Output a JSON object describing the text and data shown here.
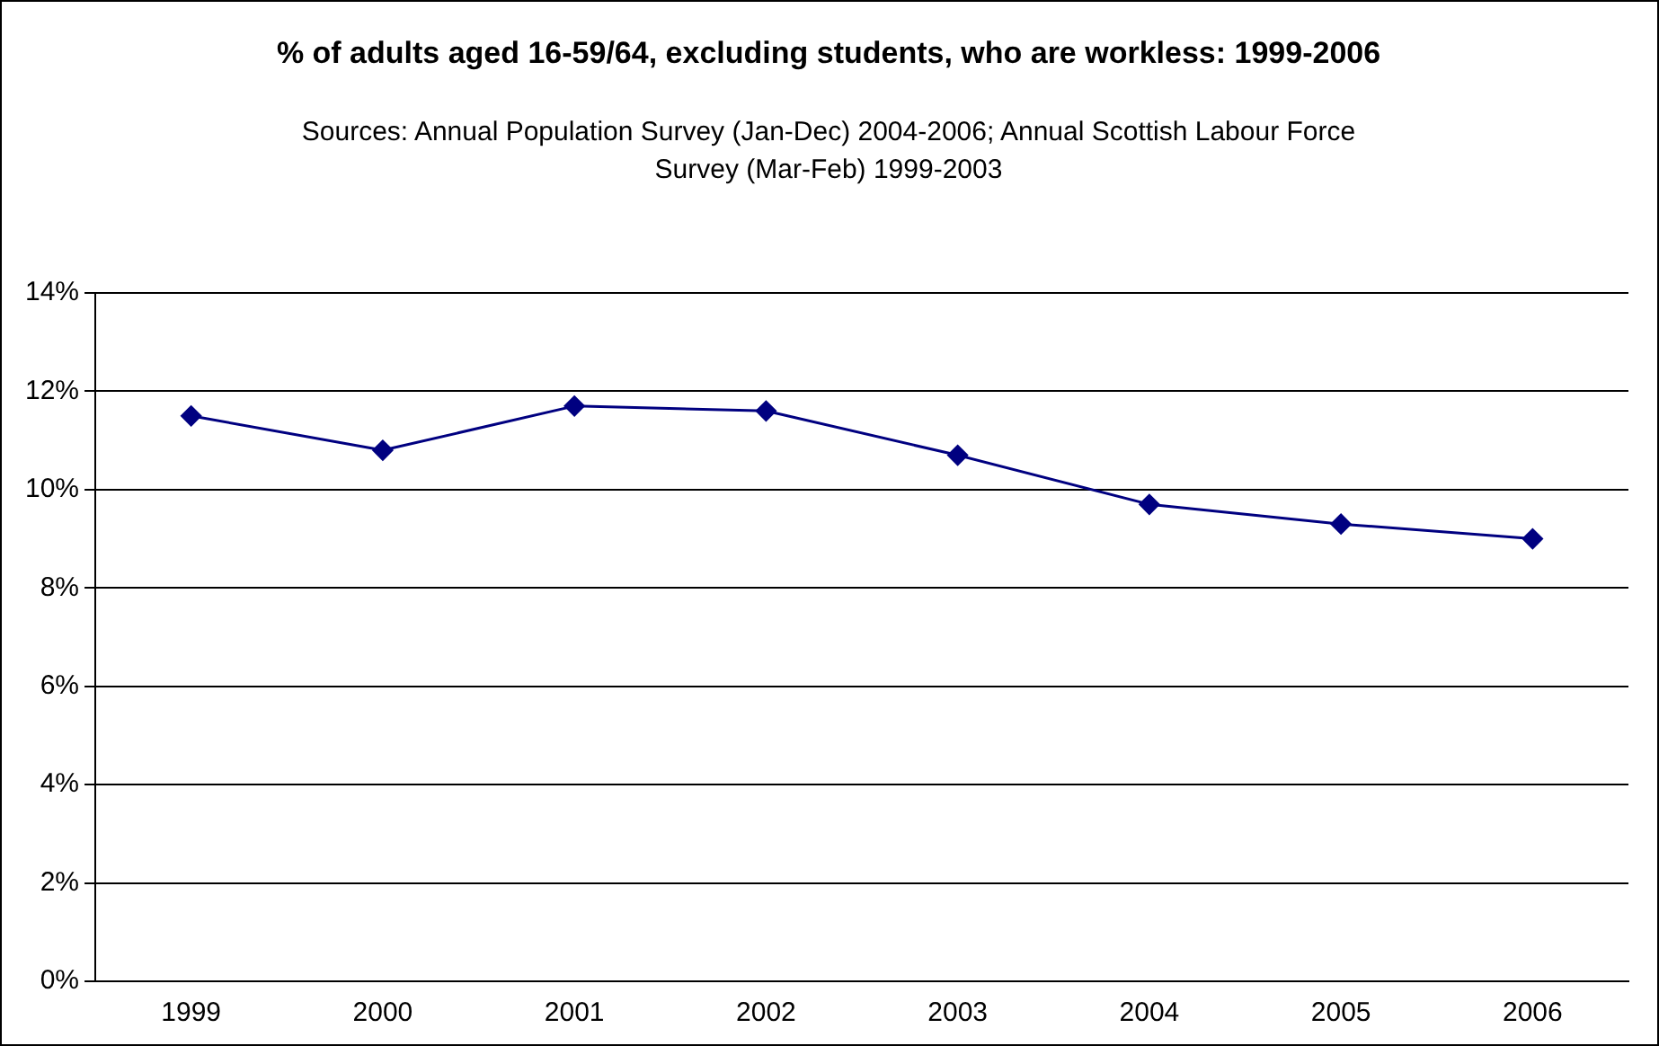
{
  "chart_data": {
    "type": "line",
    "title": "% of adults aged 16-59/64, excluding students, who are workless: 1999-2006",
    "subtitle": "Sources:  Annual Population Survey (Jan-Dec) 2004-2006; Annual Scottish Labour Force Survey (Mar-Feb) 1999-2003",
    "categories": [
      "1999",
      "2000",
      "2001",
      "2002",
      "2003",
      "2004",
      "2005",
      "2006"
    ],
    "series": [
      {
        "color": "#000080",
        "values": [
          11.5,
          10.8,
          11.7,
          11.6,
          10.7,
          9.7,
          9.3,
          9.0
        ]
      }
    ],
    "ylim": [
      0,
      14
    ],
    "yticks": [
      {
        "value": 0,
        "label": "0%"
      },
      {
        "value": 2,
        "label": "2%"
      },
      {
        "value": 4,
        "label": "4%"
      },
      {
        "value": 6,
        "label": "6%"
      },
      {
        "value": 8,
        "label": "8%"
      },
      {
        "value": 10,
        "label": "10%"
      },
      {
        "value": 12,
        "label": "12%"
      },
      {
        "value": 14,
        "label": "14%"
      }
    ],
    "grid": "y",
    "legend": false,
    "marker": "diamond",
    "line_style": "solid"
  }
}
